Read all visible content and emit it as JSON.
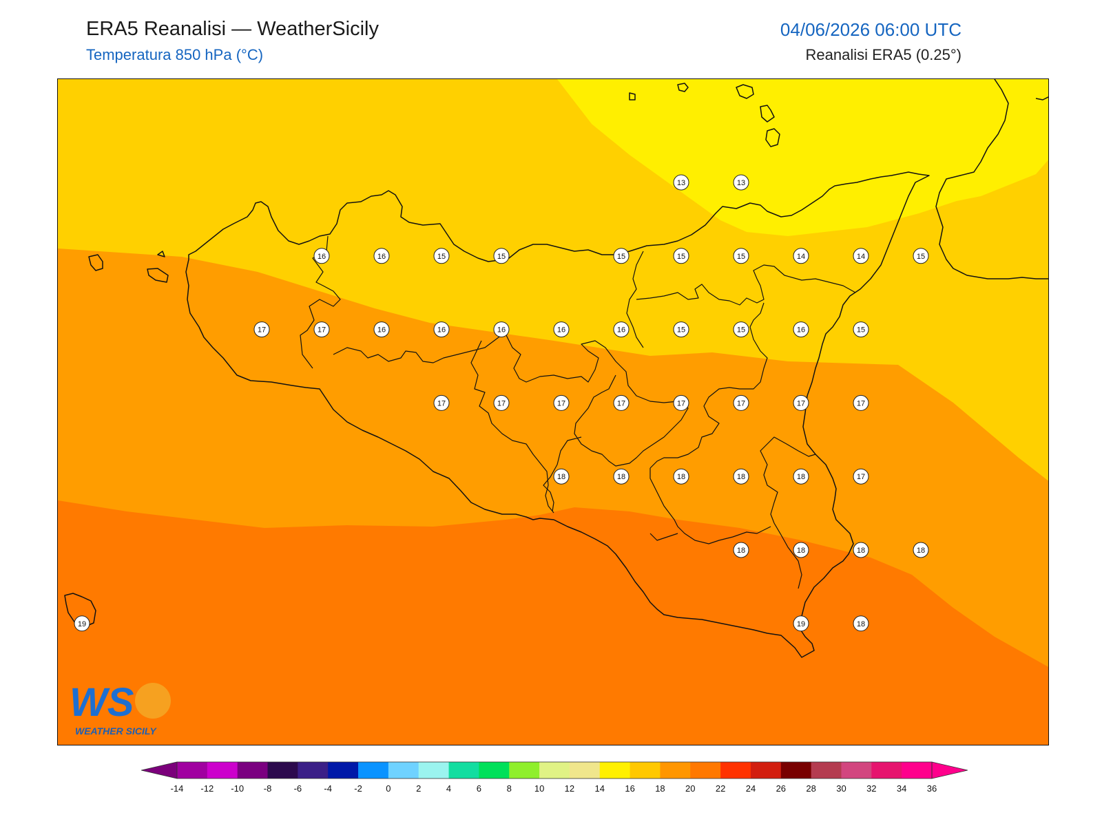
{
  "header": {
    "title": "ERA5 Reanalisi — WeatherSicily",
    "subtitle": "Temperatura 850 hPa (°C)",
    "datetime": "04/06/2026 06:00 UTC",
    "source": "Reanalisi ERA5 (0.25°)"
  },
  "logo": {
    "text": "WS",
    "caption": "WEATHER SICILY",
    "icon": "weather-sicily-logo"
  },
  "colorbar": {
    "ticks": [
      "-14",
      "-12",
      "-10",
      "-8",
      "-6",
      "-4",
      "-2",
      "0",
      "2",
      "4",
      "6",
      "8",
      "10",
      "12",
      "14",
      "16",
      "18",
      "20",
      "22",
      "24",
      "26",
      "28",
      "30",
      "32",
      "34",
      "36"
    ],
    "colors": [
      "#7b007b",
      "#a000a0",
      "#cc00cc",
      "#7a0080",
      "#2c0a4d",
      "#3b1f87",
      "#0018a8",
      "#0a93ff",
      "#6fd2ff",
      "#9bf4ef",
      "#13dda0",
      "#00e05a",
      "#8fef2c",
      "#e0f285",
      "#f0e68c",
      "#fff000",
      "#ffc800",
      "#ff9600",
      "#ff7800",
      "#ff3200",
      "#d21e0f",
      "#780000",
      "#b43c50",
      "#d2467f",
      "#e6146e",
      "#ff008c"
    ]
  },
  "fields": {
    "colors": {
      "c13": "#ffef00",
      "c14": "#ffd000",
      "c16": "#ff9d00",
      "c18": "#ff7a00"
    }
  },
  "stations": [
    {
      "v": "13",
      "lon": 13.0,
      "lat": 38.2
    },
    {
      "v": "13",
      "lon": 13.5,
      "lat": 38.2
    },
    {
      "v": "16",
      "lon": 10.0,
      "lat": 37.6
    },
    {
      "v": "16",
      "lon": 10.5,
      "lat": 37.6
    },
    {
      "v": "15",
      "lon": 11.0,
      "lat": 37.6
    },
    {
      "v": "15",
      "lon": 11.5,
      "lat": 37.6
    },
    {
      "v": "15",
      "lon": 12.5,
      "lat": 37.6
    },
    {
      "v": "15",
      "lon": 13.0,
      "lat": 37.6
    },
    {
      "v": "15",
      "lon": 13.5,
      "lat": 37.6
    },
    {
      "v": "14",
      "lon": 14.0,
      "lat": 37.6
    },
    {
      "v": "14",
      "lon": 14.5,
      "lat": 37.6
    },
    {
      "v": "15",
      "lon": 15.0,
      "lat": 37.6
    },
    {
      "v": "17",
      "lon": 9.5,
      "lat": 37.0
    },
    {
      "v": "17",
      "lon": 10.0,
      "lat": 37.0
    },
    {
      "v": "16",
      "lon": 10.5,
      "lat": 37.0
    },
    {
      "v": "16",
      "lon": 11.0,
      "lat": 37.0
    },
    {
      "v": "16",
      "lon": 11.5,
      "lat": 37.0
    },
    {
      "v": "16",
      "lon": 12.0,
      "lat": 37.0
    },
    {
      "v": "16",
      "lon": 12.5,
      "lat": 37.0
    },
    {
      "v": "15",
      "lon": 13.0,
      "lat": 37.0
    },
    {
      "v": "15",
      "lon": 13.5,
      "lat": 37.0
    },
    {
      "v": "16",
      "lon": 14.0,
      "lat": 37.0
    },
    {
      "v": "15",
      "lon": 14.5,
      "lat": 37.0
    },
    {
      "v": "17",
      "lon": 11.0,
      "lat": 36.4
    },
    {
      "v": "17",
      "lon": 11.5,
      "lat": 36.4
    },
    {
      "v": "17",
      "lon": 12.0,
      "lat": 36.4
    },
    {
      "v": "17",
      "lon": 12.5,
      "lat": 36.4
    },
    {
      "v": "17",
      "lon": 13.0,
      "lat": 36.4
    },
    {
      "v": "17",
      "lon": 13.5,
      "lat": 36.4
    },
    {
      "v": "17",
      "lon": 14.0,
      "lat": 36.4
    },
    {
      "v": "17",
      "lon": 14.5,
      "lat": 36.4
    },
    {
      "v": "18",
      "lon": 12.0,
      "lat": 35.8
    },
    {
      "v": "18",
      "lon": 12.5,
      "lat": 35.8
    },
    {
      "v": "18",
      "lon": 13.0,
      "lat": 35.8
    },
    {
      "v": "18",
      "lon": 13.5,
      "lat": 35.8
    },
    {
      "v": "18",
      "lon": 14.0,
      "lat": 35.8
    },
    {
      "v": "17",
      "lon": 14.5,
      "lat": 35.8
    },
    {
      "v": "18",
      "lon": 13.5,
      "lat": 35.2
    },
    {
      "v": "18",
      "lon": 14.0,
      "lat": 35.2
    },
    {
      "v": "18",
      "lon": 14.5,
      "lat": 35.2
    },
    {
      "v": "18",
      "lon": 15.0,
      "lat": 35.2
    },
    {
      "v": "19",
      "lon": 8.0,
      "lat": 34.6
    },
    {
      "v": "19",
      "lon": 14.0,
      "lat": 34.6
    },
    {
      "v": "18",
      "lon": 14.5,
      "lat": 34.6
    }
  ]
}
